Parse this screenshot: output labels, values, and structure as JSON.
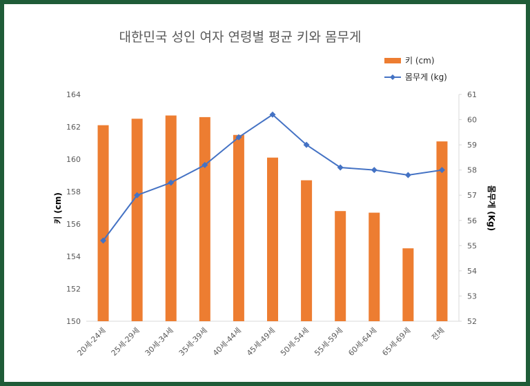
{
  "chart_data": {
    "type": "bar",
    "title": "대한민국 성인 여자 연령별 평균 키와 몸무게",
    "categories": [
      "20세-24세",
      "25세-29세",
      "30세-34세",
      "35세-39세",
      "40세-44세",
      "45세-49세",
      "50세-54세",
      "55세-59세",
      "60세-64세",
      "65세-69세",
      "전체"
    ],
    "series": [
      {
        "name": "키 (cm)",
        "type": "bar",
        "axis": "left",
        "color": "#ED7D31",
        "values": [
          162.1,
          162.5,
          162.7,
          162.6,
          161.5,
          160.1,
          158.7,
          156.8,
          156.7,
          154.5,
          161.1
        ]
      },
      {
        "name": "몸무게 (kg)",
        "type": "line",
        "axis": "right",
        "color": "#4472C4",
        "values": [
          55.2,
          57.0,
          57.5,
          58.2,
          59.3,
          60.2,
          59.0,
          58.1,
          58.0,
          57.8,
          58.0
        ]
      }
    ],
    "ylabel": "키 (cm)",
    "ylim": [
      150,
      164
    ],
    "yticks": [
      "150",
      "152",
      "154",
      "156",
      "158",
      "160",
      "162",
      "164"
    ],
    "y2label": "몸무게 (Kg)",
    "y2lim": [
      52,
      61
    ],
    "y2ticks": [
      "52",
      "53",
      "54",
      "55",
      "56",
      "57",
      "58",
      "59",
      "60",
      "61"
    ],
    "grid": false,
    "legend": "top-right"
  }
}
